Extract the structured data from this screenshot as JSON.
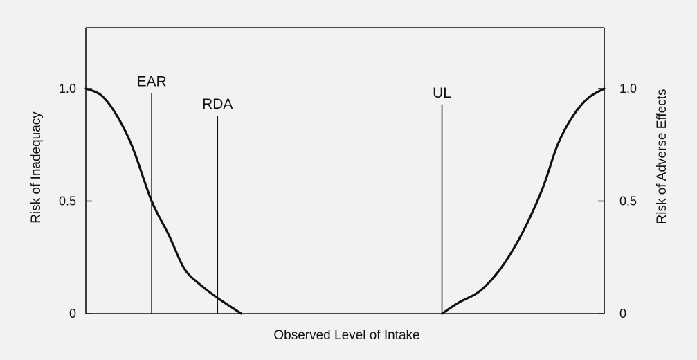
{
  "chart_data": {
    "type": "line",
    "title": "",
    "xlabel": "Observed Level of Intake",
    "ylabel_left": "Risk of Inadequacy",
    "ylabel_right": "Risk of Adverse Effects",
    "ylim": [
      0,
      1
    ],
    "xlim": [
      0,
      100
    ],
    "y_ticks": [
      {
        "value": 0,
        "label": "0"
      },
      {
        "value": 0.5,
        "label": "0.5"
      },
      {
        "value": 1,
        "label": "1.0"
      }
    ],
    "grid": false,
    "reference_lines": [
      {
        "label": "EAR",
        "x": 12.7,
        "top": 0.98
      },
      {
        "label": "RDA",
        "x": 25.4,
        "top": 0.88
      },
      {
        "label": "UL",
        "x": 68.7,
        "top": 0.93
      }
    ],
    "series": [
      {
        "x": [
          0,
          3,
          6,
          9,
          12.7,
          16,
          19,
          22,
          25.4,
          30
        ],
        "y": [
          1.0,
          0.97,
          0.88,
          0.74,
          0.5,
          0.35,
          0.2,
          0.13,
          0.07,
          0
        ]
      },
      {
        "x": [
          68.7,
          72,
          76,
          80,
          84,
          88,
          91,
          94,
          97,
          100
        ],
        "y": [
          0,
          0.05,
          0.1,
          0.2,
          0.35,
          0.55,
          0.75,
          0.88,
          0.96,
          1.0
        ]
      }
    ]
  }
}
